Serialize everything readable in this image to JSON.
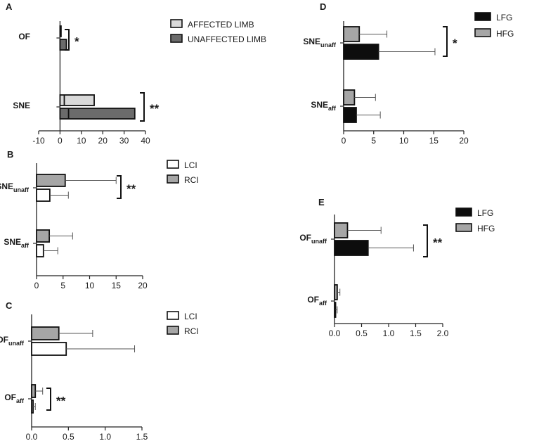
{
  "chart_data": [
    {
      "id": "A",
      "type": "bar",
      "orientation": "horizontal",
      "panel_label": "A",
      "categories": [
        {
          "main": "OF",
          "sub": ""
        },
        {
          "main": "SNE",
          "sub": ""
        }
      ],
      "series": [
        {
          "name": "AFFECTED LIMB",
          "color": "#d9d9d9",
          "values": [
            0.3,
            16
          ],
          "median": [
            null,
            2
          ],
          "error": [
            null,
            null
          ]
        },
        {
          "name": "UNAFFECTED LIMB",
          "color": "#6b6b6b",
          "values": [
            3,
            35
          ],
          "median": [
            null,
            4
          ],
          "error": [
            null,
            null
          ]
        }
      ],
      "xlim": [
        -10,
        40
      ],
      "xticks": [
        -10,
        0,
        10,
        20,
        30,
        40
      ],
      "xtick_labels": [
        "-10",
        "0",
        "10",
        "20",
        "30",
        "40"
      ],
      "significance": [
        {
          "category": "OF",
          "label": "*"
        },
        {
          "category": "SNE",
          "label": "**"
        }
      ],
      "legend": [
        "AFFECTED LIMB",
        "UNAFFECTED LIMB"
      ]
    },
    {
      "id": "B",
      "type": "bar",
      "orientation": "horizontal",
      "panel_label": "B",
      "categories": [
        {
          "main": "SNE",
          "sub": "unaff"
        },
        {
          "main": "SNE",
          "sub": "aff"
        }
      ],
      "series": [
        {
          "name": "RCI",
          "color": "#a6a6a6",
          "values": [
            5.4,
            2.4
          ],
          "error": [
            9.6,
            4.4
          ]
        },
        {
          "name": "LCI",
          "color": "#ffffff",
          "values": [
            2.5,
            1.3
          ],
          "error": [
            3.5,
            2.7
          ]
        }
      ],
      "xlim": [
        0,
        20
      ],
      "xticks": [
        0,
        5,
        10,
        15,
        20
      ],
      "xtick_labels": [
        "0",
        "5",
        "10",
        "15",
        "20"
      ],
      "significance": [
        {
          "category": "SNE_unaff",
          "label": "**"
        }
      ],
      "legend": [
        "LCI",
        "RCI"
      ]
    },
    {
      "id": "C",
      "type": "bar",
      "orientation": "horizontal",
      "panel_label": "C",
      "categories": [
        {
          "main": "OF",
          "sub": "unaff"
        },
        {
          "main": "OF",
          "sub": "aff"
        }
      ],
      "series": [
        {
          "name": "RCI",
          "color": "#a6a6a6",
          "values": [
            0.37,
            0.05
          ],
          "error": [
            0.46,
            0.1
          ]
        },
        {
          "name": "LCI",
          "color": "#ffffff",
          "values": [
            0.47,
            0.02
          ],
          "error": [
            0.93,
            0.03
          ]
        }
      ],
      "xlim": [
        0,
        1.5
      ],
      "xticks": [
        0,
        0.5,
        1,
        1.5
      ],
      "xtick_labels": [
        "0.0",
        "0.5",
        "1.0",
        "1.5"
      ],
      "significance": [
        {
          "category": "OF_aff",
          "label": "**"
        }
      ],
      "legend": [
        "LCI",
        "RCI"
      ]
    },
    {
      "id": "D",
      "type": "bar",
      "orientation": "horizontal",
      "panel_label": "D",
      "categories": [
        {
          "main": "SNE",
          "sub": "unaff"
        },
        {
          "main": "SNE",
          "sub": "aff"
        }
      ],
      "series": [
        {
          "name": "HFG",
          "color": "#a6a6a6",
          "values": [
            2.6,
            1.8
          ],
          "error": [
            4.6,
            3.5
          ]
        },
        {
          "name": "LFG",
          "color": "#0d0d0d",
          "values": [
            5.8,
            2.1
          ],
          "error": [
            9.4,
            4.0
          ]
        }
      ],
      "xlim": [
        0,
        20
      ],
      "xticks": [
        0,
        5,
        10,
        15,
        20
      ],
      "xtick_labels": [
        "0",
        "5",
        "10",
        "15",
        "20"
      ],
      "significance": [
        {
          "category": "SNE_unaff",
          "label": "*"
        }
      ],
      "legend": [
        "LFG",
        "HFG"
      ]
    },
    {
      "id": "E",
      "type": "bar",
      "orientation": "horizontal",
      "panel_label": "E",
      "categories": [
        {
          "main": "OF",
          "sub": "unaff"
        },
        {
          "main": "OF",
          "sub": "aff"
        }
      ],
      "series": [
        {
          "name": "HFG",
          "color": "#a6a6a6",
          "values": [
            0.24,
            0.05
          ],
          "error": [
            0.62,
            0.05
          ]
        },
        {
          "name": "LFG",
          "color": "#0d0d0d",
          "values": [
            0.62,
            0.02
          ],
          "error": [
            0.84,
            0.03
          ]
        }
      ],
      "xlim": [
        0,
        2
      ],
      "xticks": [
        0,
        0.5,
        1,
        1.5,
        2
      ],
      "xtick_labels": [
        "0.0",
        "0.5",
        "1.0",
        "1.5",
        "2.0"
      ],
      "significance": [
        {
          "category": "OF_unaff",
          "label": "**"
        }
      ],
      "legend": [
        "LFG",
        "HFG"
      ]
    }
  ]
}
